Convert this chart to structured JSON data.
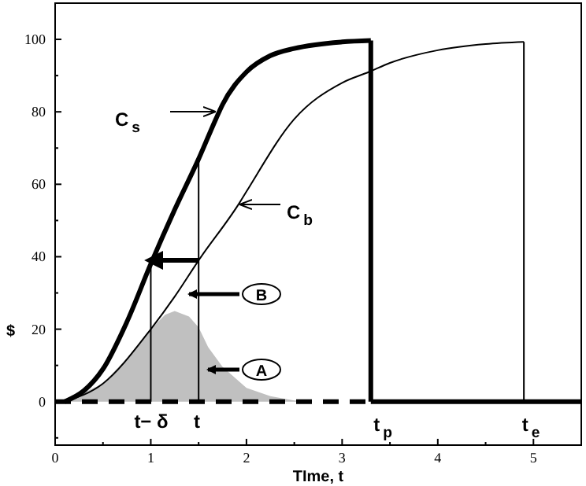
{
  "chart_data": {
    "type": "line",
    "xlabel": "TIme, t",
    "ylabel": "$",
    "xlim": [
      0,
      5.5
    ],
    "ylim": [
      -12,
      110
    ],
    "xticks": [
      0,
      {
        "value": 0.5,
        "label": null
      },
      1,
      {
        "value": 1.5,
        "label": null
      },
      2,
      {
        "value": 2.5,
        "label": null
      },
      3,
      {
        "value": 3.5,
        "label": null
      },
      4,
      {
        "value": 4.5,
        "label": null
      },
      5
    ],
    "yticks": [
      {
        "value": -10,
        "label": null
      },
      0,
      {
        "value": 10,
        "label": null
      },
      20,
      {
        "value": 30,
        "label": null
      },
      40,
      {
        "value": 50,
        "label": null
      },
      60,
      {
        "value": 70,
        "label": null
      },
      80,
      {
        "value": 90,
        "label": null
      },
      100
    ],
    "grid": false,
    "marker": "none",
    "series": [
      {
        "type": "area",
        "color": "#c0c0c0",
        "x": [
          0.1,
          0.5,
          0.75,
          1.0,
          1.15,
          1.25,
          1.4,
          1.5,
          1.6,
          1.75,
          2.0,
          2.25,
          2.5,
          2.7
        ],
        "values": [
          0,
          5,
          12,
          20,
          24,
          25,
          23.5,
          20.5,
          15,
          9.6,
          3.8,
          1.5,
          0.3,
          0
        ]
      },
      {
        "color": "#000000",
        "x": [
          0.1,
          0.3,
          0.5,
          0.75,
          1.0,
          1.25,
          1.5,
          1.68,
          1.75,
          2.0,
          2.25,
          2.5,
          3.0,
          3.3
        ],
        "values": [
          0,
          3,
          9,
          22,
          38,
          53,
          67,
          78,
          82,
          91,
          95.5,
          97.5,
          99.3,
          99.7
        ]
      },
      {
        "color": "#000000",
        "x": [
          0.1,
          0.5,
          1.0,
          1.25,
          1.5,
          1.93,
          2.0,
          2.5,
          3.0,
          3.28,
          3.5,
          4.0,
          4.5,
          4.9
        ],
        "values": [
          0,
          5,
          20,
          29,
          39,
          55,
          58,
          78,
          88,
          91,
          93.5,
          97,
          98.7,
          99.3
        ]
      },
      {
        "color": "#000000",
        "line_style": "dashed",
        "x": [
          0,
          3.3
        ],
        "values": [
          0,
          0
        ]
      },
      {
        "color": "#000000",
        "x": [
          1,
          1
        ],
        "values": [
          0,
          38
        ]
      },
      {
        "color": "#000000",
        "x": [
          1.5,
          1.5
        ],
        "values": [
          0,
          67
        ]
      },
      {
        "color": "#000000",
        "x": [
          1.5,
          1.03
        ],
        "values": [
          39,
          39
        ]
      },
      {
        "color": "#000000",
        "x": [
          3.3,
          3.3
        ],
        "values": [
          99.7,
          0
        ]
      },
      {
        "color": "#000000",
        "x": [
          3.3,
          5.5
        ],
        "values": [
          0,
          0
        ]
      },
      {
        "color": "#000000",
        "x": [
          4.9,
          4.9
        ],
        "values": [
          99.3,
          0
        ]
      }
    ],
    "annotations": [
      "C$_{s}$",
      "C$_{b}$",
      "B",
      "A",
      "t− δ",
      "t",
      "t$_{p}$",
      "t$_{e}$"
    ]
  }
}
